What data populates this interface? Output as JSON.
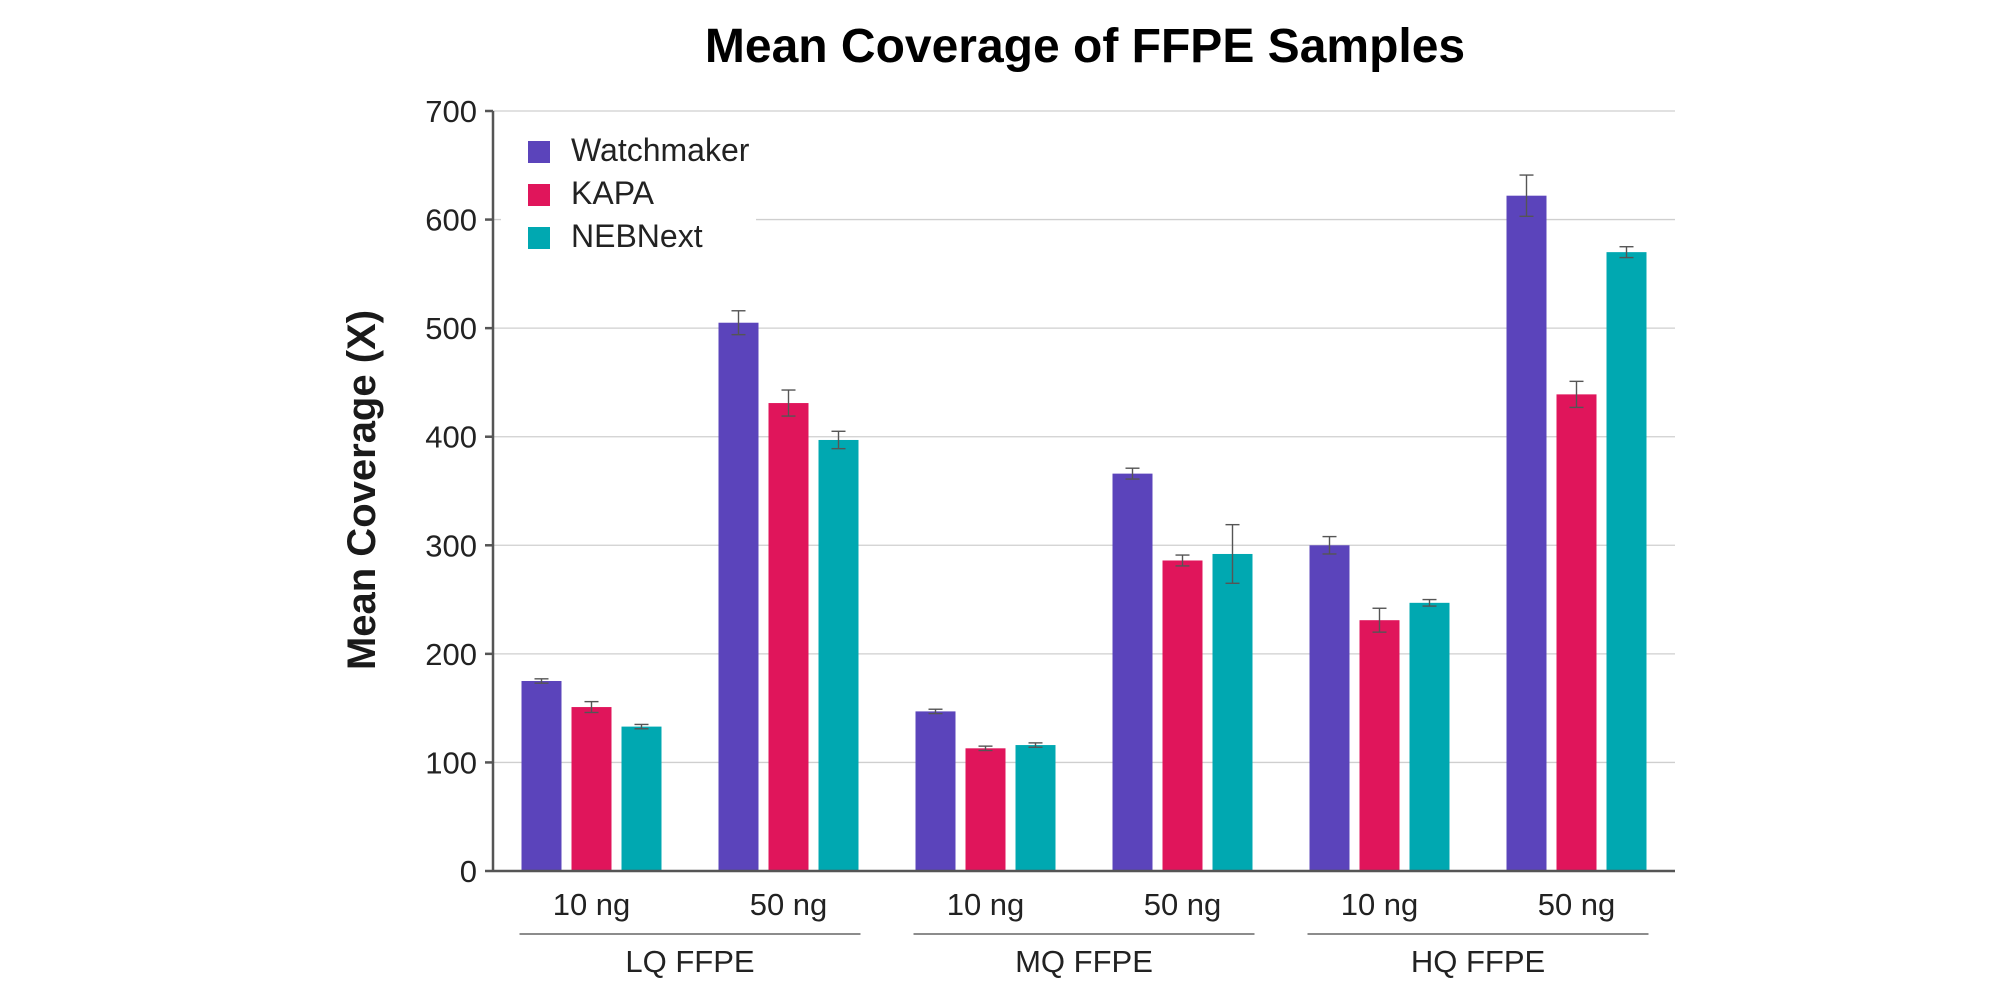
{
  "chart_data": {
    "type": "bar",
    "title": "Mean Coverage of FFPE Samples",
    "xlabel": "",
    "ylabel": "Mean Coverage (X)",
    "ylim": [
      0,
      700
    ],
    "yticks": [
      0,
      100,
      200,
      300,
      400,
      500,
      600,
      700
    ],
    "grid": true,
    "legend_position": "top-left",
    "categories": [
      "10 ng",
      "50 ng",
      "10 ng",
      "50 ng",
      "10 ng",
      "50 ng"
    ],
    "groups": [
      {
        "label": "LQ FFPE",
        "categories": [
          0,
          1
        ]
      },
      {
        "label": "MQ FFPE",
        "categories": [
          2,
          3
        ]
      },
      {
        "label": "HQ FFPE",
        "categories": [
          4,
          5
        ]
      }
    ],
    "series": [
      {
        "name": "Watchmaker",
        "color": "#5b44bb",
        "values": [
          175,
          505,
          147,
          366,
          300,
          622
        ],
        "errors": [
          2,
          11,
          2,
          5,
          8,
          19
        ]
      },
      {
        "name": "KAPA",
        "color": "#e0155b",
        "values": [
          151,
          431,
          113,
          286,
          231,
          439
        ],
        "errors": [
          5,
          12,
          2,
          5,
          11,
          12
        ]
      },
      {
        "name": "NEBNext",
        "color": "#00a8b1",
        "values": [
          133,
          397,
          116,
          292,
          247,
          570
        ],
        "errors": [
          2,
          8,
          2,
          27,
          3,
          5
        ]
      }
    ]
  }
}
